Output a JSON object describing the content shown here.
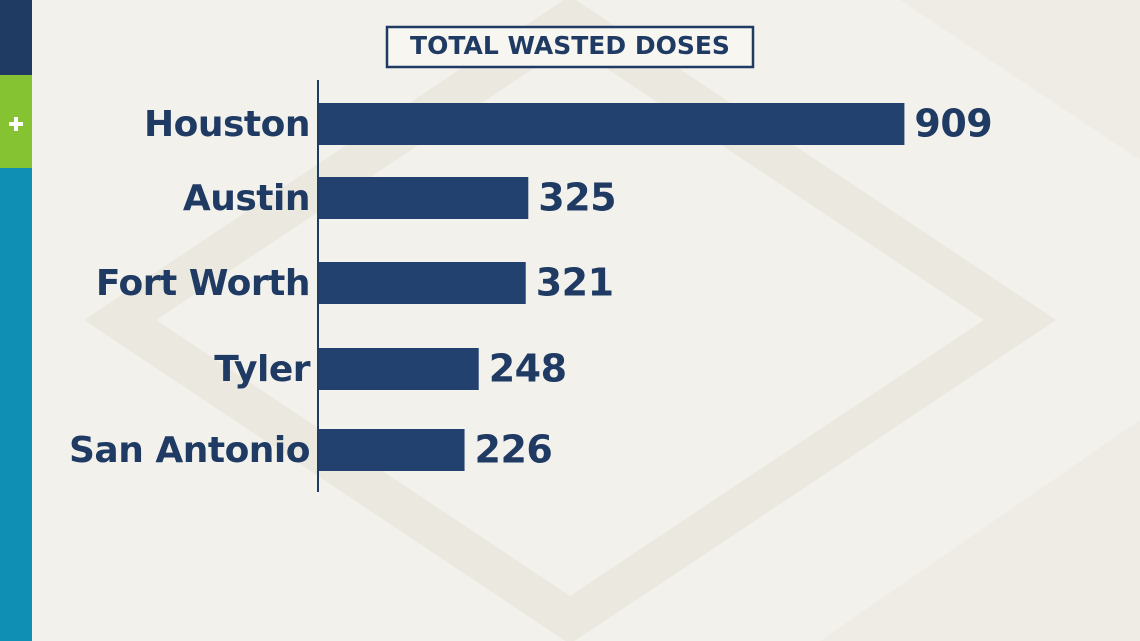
{
  "chart_data": {
    "type": "bar",
    "orientation": "horizontal",
    "title": "TOTAL WASTED DOSES",
    "categories": [
      "Houston",
      "Austin",
      "Fort Worth",
      "Tyler",
      "San Antonio"
    ],
    "values": [
      909,
      325,
      321,
      248,
      226
    ],
    "color": "#22416e",
    "xlim": [
      0,
      1000
    ]
  }
}
